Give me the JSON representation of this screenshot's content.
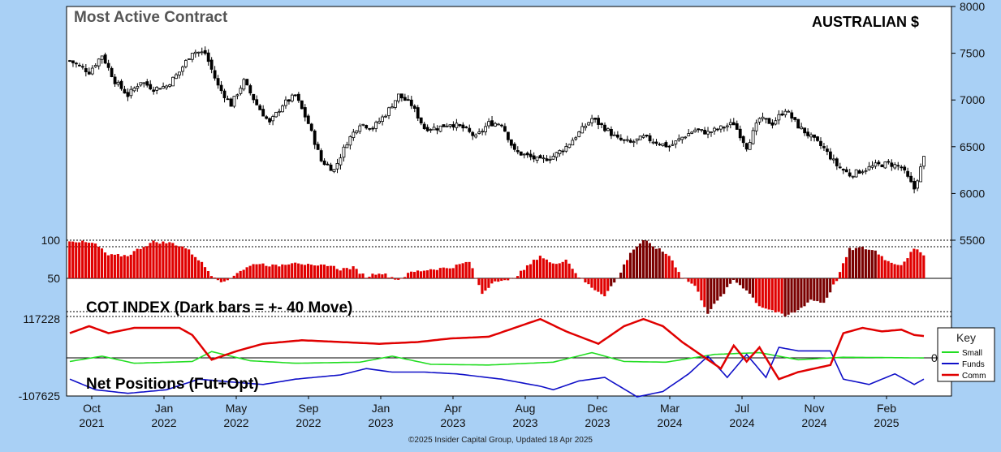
{
  "header": {
    "title": "Most Active Contract",
    "instrument": "AUSTRALIAN $"
  },
  "footer": {
    "copyright": "©2025 Insider Capital Group, Updated 18 Apr 2025"
  },
  "key": {
    "title": "Key",
    "items": [
      {
        "label": "Small",
        "color": "#22dd22"
      },
      {
        "label": "Funds",
        "color": "#1010c8"
      },
      {
        "label": "Comm",
        "color": "#e00000"
      }
    ]
  },
  "chart_data": [
    {
      "type": "candlestick",
      "title": "Most Active Contract",
      "subtitle": "AUSTRALIAN $",
      "ylim": [
        5500,
        8000
      ],
      "y_ticks": [
        "8000",
        "7500",
        "7000",
        "6500",
        "6000",
        "5500"
      ],
      "x_labels": [
        {
          "month": "Oct",
          "year": "2021"
        },
        {
          "month": "Jan",
          "year": "2022"
        },
        {
          "month": "May",
          "year": "2022"
        },
        {
          "month": "Sep",
          "year": "2022"
        },
        {
          "month": "Jan",
          "year": "2023"
        },
        {
          "month": "Apr",
          "year": "2023"
        },
        {
          "month": "Aug",
          "year": "2023"
        },
        {
          "month": "Dec",
          "year": "2023"
        },
        {
          "month": "Mar",
          "year": "2024"
        },
        {
          "month": "Jul",
          "year": "2024"
        },
        {
          "month": "Nov",
          "year": "2024"
        },
        {
          "month": "Feb",
          "year": "2025"
        }
      ],
      "close_anchors": [
        [
          0,
          7420
        ],
        [
          6,
          7300
        ],
        [
          10,
          7480
        ],
        [
          14,
          7200
        ],
        [
          18,
          7050
        ],
        [
          22,
          7200
        ],
        [
          26,
          7120
        ],
        [
          30,
          7150
        ],
        [
          34,
          7300
        ],
        [
          38,
          7520
        ],
        [
          42,
          7500
        ],
        [
          46,
          7150
        ],
        [
          50,
          6950
        ],
        [
          54,
          7200
        ],
        [
          58,
          6950
        ],
        [
          62,
          6750
        ],
        [
          66,
          6950
        ],
        [
          70,
          7050
        ],
        [
          74,
          6750
        ],
        [
          78,
          6350
        ],
        [
          82,
          6250
        ],
        [
          86,
          6550
        ],
        [
          90,
          6750
        ],
        [
          94,
          6700
        ],
        [
          98,
          6850
        ],
        [
          102,
          7050
        ],
        [
          106,
          6950
        ],
        [
          110,
          6700
        ],
        [
          114,
          6700
        ],
        [
          118,
          6750
        ],
        [
          122,
          6700
        ],
        [
          126,
          6600
        ],
        [
          130,
          6750
        ],
        [
          134,
          6750
        ],
        [
          138,
          6450
        ],
        [
          142,
          6400
        ],
        [
          146,
          6350
        ],
        [
          150,
          6400
        ],
        [
          154,
          6500
        ],
        [
          158,
          6650
        ],
        [
          162,
          6800
        ],
        [
          166,
          6700
        ],
        [
          170,
          6580
        ],
        [
          174,
          6540
        ],
        [
          178,
          6600
        ],
        [
          182,
          6550
        ],
        [
          186,
          6500
        ],
        [
          190,
          6600
        ],
        [
          194,
          6680
        ],
        [
          198,
          6650
        ],
        [
          202,
          6700
        ],
        [
          206,
          6750
        ],
        [
          210,
          6500
        ],
        [
          214,
          6800
        ],
        [
          218,
          6750
        ],
        [
          222,
          6900
        ],
        [
          226,
          6720
        ],
        [
          230,
          6600
        ],
        [
          234,
          6480
        ],
        [
          238,
          6300
        ],
        [
          242,
          6200
        ],
        [
          246,
          6250
        ],
        [
          250,
          6300
        ],
        [
          254,
          6320
        ],
        [
          258,
          6280
        ],
        [
          262,
          6050
        ],
        [
          265,
          6380
        ]
      ],
      "n_bars": 266
    },
    {
      "type": "bar",
      "title": "COT INDEX (Dark bars = +- 40 Move)",
      "ylim": [
        0,
        100
      ],
      "y_ticks": [
        "100",
        "50"
      ],
      "baseline": 50,
      "value_anchors": [
        [
          0,
          100
        ],
        [
          8,
          95
        ],
        [
          12,
          80
        ],
        [
          18,
          80
        ],
        [
          22,
          90
        ],
        [
          26,
          98
        ],
        [
          32,
          96
        ],
        [
          36,
          90
        ],
        [
          40,
          75
        ],
        [
          44,
          55
        ],
        [
          48,
          44
        ],
        [
          52,
          58
        ],
        [
          58,
          70
        ],
        [
          64,
          66
        ],
        [
          70,
          72
        ],
        [
          76,
          65
        ],
        [
          80,
          68
        ],
        [
          84,
          62
        ],
        [
          88,
          64
        ],
        [
          92,
          52
        ],
        [
          96,
          58
        ],
        [
          102,
          48
        ],
        [
          106,
          58
        ],
        [
          112,
          62
        ],
        [
          118,
          64
        ],
        [
          124,
          72
        ],
        [
          128,
          30
        ],
        [
          132,
          48
        ],
        [
          136,
          46
        ],
        [
          140,
          58
        ],
        [
          146,
          80
        ],
        [
          150,
          68
        ],
        [
          154,
          75
        ],
        [
          158,
          52
        ],
        [
          162,
          38
        ],
        [
          166,
          28
        ],
        [
          170,
          50
        ],
        [
          174,
          84
        ],
        [
          178,
          100
        ],
        [
          182,
          90
        ],
        [
          186,
          80
        ],
        [
          190,
          52
        ],
        [
          194,
          40
        ],
        [
          198,
          5
        ],
        [
          202,
          25
        ],
        [
          206,
          48
        ],
        [
          210,
          35
        ],
        [
          214,
          14
        ],
        [
          218,
          8
        ],
        [
          222,
          0
        ],
        [
          226,
          8
        ],
        [
          230,
          22
        ],
        [
          234,
          18
        ],
        [
          238,
          48
        ],
        [
          242,
          88
        ],
        [
          246,
          90
        ],
        [
          250,
          86
        ],
        [
          254,
          72
        ],
        [
          258,
          68
        ],
        [
          262,
          88
        ],
        [
          265,
          82
        ]
      ],
      "dark_ranges": [
        [
          168,
          172
        ],
        [
          174,
          184
        ],
        [
          198,
          212
        ],
        [
          222,
          236
        ],
        [
          242,
          250
        ]
      ]
    },
    {
      "type": "line",
      "title": "Net Positions (Fut+Opt)",
      "ylim": [
        -107625,
        117228
      ],
      "y_ticks": [
        "117228",
        "-107625"
      ],
      "zero_label": "0",
      "series": [
        {
          "name": "Small",
          "color": "#22dd22",
          "anchors": [
            [
              0,
              -10000
            ],
            [
              10,
              5000
            ],
            [
              20,
              -15000
            ],
            [
              38,
              -10000
            ],
            [
              44,
              18000
            ],
            [
              56,
              -8000
            ],
            [
              70,
              -15000
            ],
            [
              90,
              -12000
            ],
            [
              100,
              5000
            ],
            [
              112,
              -18000
            ],
            [
              130,
              -20000
            ],
            [
              150,
              -12000
            ],
            [
              162,
              15000
            ],
            [
              172,
              -10000
            ],
            [
              185,
              -12000
            ],
            [
              200,
              10000
            ],
            [
              214,
              15000
            ],
            [
              226,
              -5000
            ],
            [
              240,
              2000
            ],
            [
              265,
              0
            ]
          ]
        },
        {
          "name": "Funds",
          "color": "#1010c8",
          "anchors": [
            [
              0,
              -60000
            ],
            [
              8,
              -90000
            ],
            [
              18,
              -100000
            ],
            [
              30,
              -90000
            ],
            [
              40,
              -60000
            ],
            [
              50,
              -68000
            ],
            [
              60,
              -75000
            ],
            [
              70,
              -60000
            ],
            [
              84,
              -48000
            ],
            [
              92,
              -30000
            ],
            [
              100,
              -40000
            ],
            [
              110,
              -40000
            ],
            [
              120,
              -45000
            ],
            [
              134,
              -60000
            ],
            [
              146,
              -80000
            ],
            [
              150,
              -90000
            ],
            [
              158,
              -65000
            ],
            [
              166,
              -55000
            ],
            [
              176,
              -110000
            ],
            [
              184,
              -95000
            ],
            [
              192,
              -45000
            ],
            [
              198,
              5000
            ],
            [
              204,
              -55000
            ],
            [
              210,
              10000
            ],
            [
              216,
              -55000
            ],
            [
              220,
              30000
            ],
            [
              226,
              20000
            ],
            [
              236,
              20000
            ],
            [
              240,
              -60000
            ],
            [
              248,
              -75000
            ],
            [
              256,
              -45000
            ],
            [
              262,
              -75000
            ],
            [
              265,
              -60000
            ]
          ]
        },
        {
          "name": "Comm",
          "color": "#e00000",
          "anchors": [
            [
              0,
              70000
            ],
            [
              6,
              90000
            ],
            [
              12,
              70000
            ],
            [
              20,
              85000
            ],
            [
              34,
              85000
            ],
            [
              38,
              65000
            ],
            [
              44,
              -5000
            ],
            [
              52,
              20000
            ],
            [
              60,
              40000
            ],
            [
              72,
              50000
            ],
            [
              84,
              45000
            ],
            [
              96,
              40000
            ],
            [
              108,
              45000
            ],
            [
              118,
              55000
            ],
            [
              130,
              60000
            ],
            [
              146,
              110000
            ],
            [
              154,
              75000
            ],
            [
              164,
              40000
            ],
            [
              172,
              90000
            ],
            [
              178,
              110000
            ],
            [
              184,
              90000
            ],
            [
              190,
              45000
            ],
            [
              198,
              -5000
            ],
            [
              202,
              -30000
            ],
            [
              206,
              35000
            ],
            [
              210,
              -10000
            ],
            [
              214,
              30000
            ],
            [
              220,
              -60000
            ],
            [
              226,
              -40000
            ],
            [
              236,
              -20000
            ],
            [
              240,
              70000
            ],
            [
              246,
              85000
            ],
            [
              252,
              75000
            ],
            [
              258,
              80000
            ],
            [
              262,
              65000
            ],
            [
              265,
              62000
            ]
          ]
        }
      ]
    }
  ]
}
